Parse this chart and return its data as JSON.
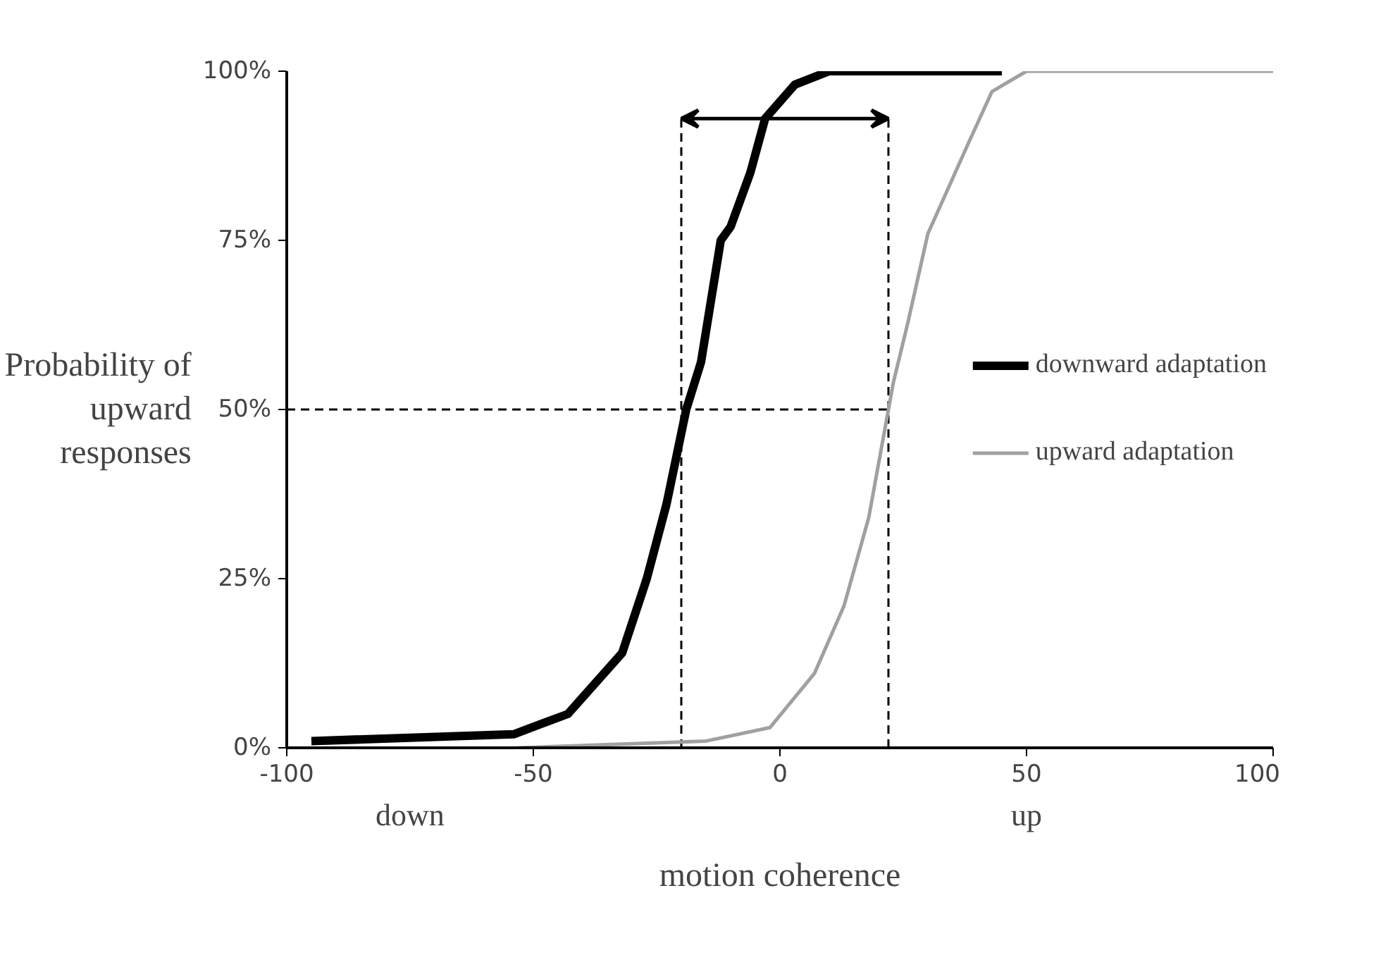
{
  "chart_data": {
    "type": "line",
    "xlabel": "motion coherence",
    "ylabel": "Probability of\nupward\nresponses",
    "xlim": [
      -100,
      100
    ],
    "xticks": [
      -100,
      -50,
      0,
      50,
      100
    ],
    "ylim": [
      0,
      100
    ],
    "yticks": [
      {
        "value": 0,
        "label": "0%"
      },
      {
        "value": 25,
        "label": "25%"
      },
      {
        "value": 50,
        "label": "50%"
      },
      {
        "value": 75,
        "label": "75%"
      },
      {
        "value": 100,
        "label": "100%"
      }
    ],
    "series": [
      {
        "name": "downward adaptation",
        "color": "#000000",
        "x": [
          -95,
          -54,
          -43,
          -32,
          -27,
          -23,
          -19,
          -16,
          -12,
          -10,
          -6,
          -3,
          3,
          10,
          45
        ],
        "values": [
          1,
          2,
          5,
          14,
          25,
          36,
          50,
          57,
          75,
          77,
          85,
          93,
          98,
          100,
          100
        ]
      },
      {
        "name": "upward adaptation",
        "color": "#a0a0a0",
        "x": [
          -53,
          -15,
          -2,
          7,
          13,
          18,
          21.5,
          23,
          26,
          30,
          38,
          43,
          50,
          100
        ],
        "values": [
          0,
          1,
          3,
          11,
          21,
          34,
          48,
          54,
          63,
          76,
          89,
          97,
          100,
          100
        ]
      }
    ],
    "ref_lines": [
      {
        "axis": "x",
        "value": -20,
        "line_style": "dashed",
        "color": "#000000"
      },
      {
        "axis": "x",
        "value": 22,
        "line_style": "dashed",
        "color": "#000000"
      },
      {
        "axis": "y",
        "value": 50,
        "line_style": "dashed",
        "color": "#000000"
      }
    ],
    "annotations": [
      "down",
      "up"
    ],
    "legend": "right",
    "grid": false
  }
}
